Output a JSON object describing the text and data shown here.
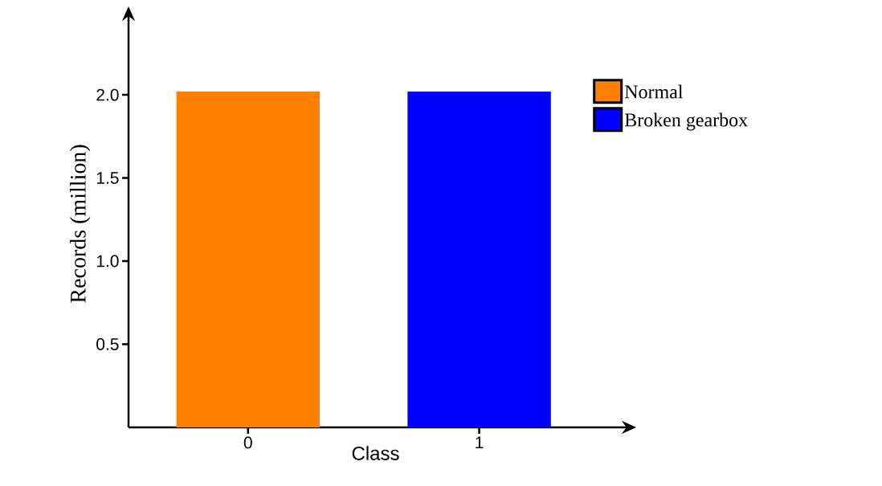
{
  "chart_data": {
    "type": "bar",
    "xlabel": "Class",
    "ylabel": "Records (million)",
    "categories": [
      "0",
      "1"
    ],
    "series": [
      {
        "name": "Normal",
        "color": "#ff8000",
        "values": [
          2.02,
          null
        ]
      },
      {
        "name": "Broken gearbox",
        "color": "#0000ff",
        "values": [
          null,
          2.02
        ]
      }
    ],
    "ylim": [
      0,
      2.45
    ],
    "yticks": [
      {
        "value": 0.5,
        "label": "0.5"
      },
      {
        "value": 1.0,
        "label": "1.0"
      },
      {
        "value": 1.5,
        "label": "1.5"
      },
      {
        "value": 2.0,
        "label": "2.0"
      }
    ],
    "legend": "top right"
  }
}
